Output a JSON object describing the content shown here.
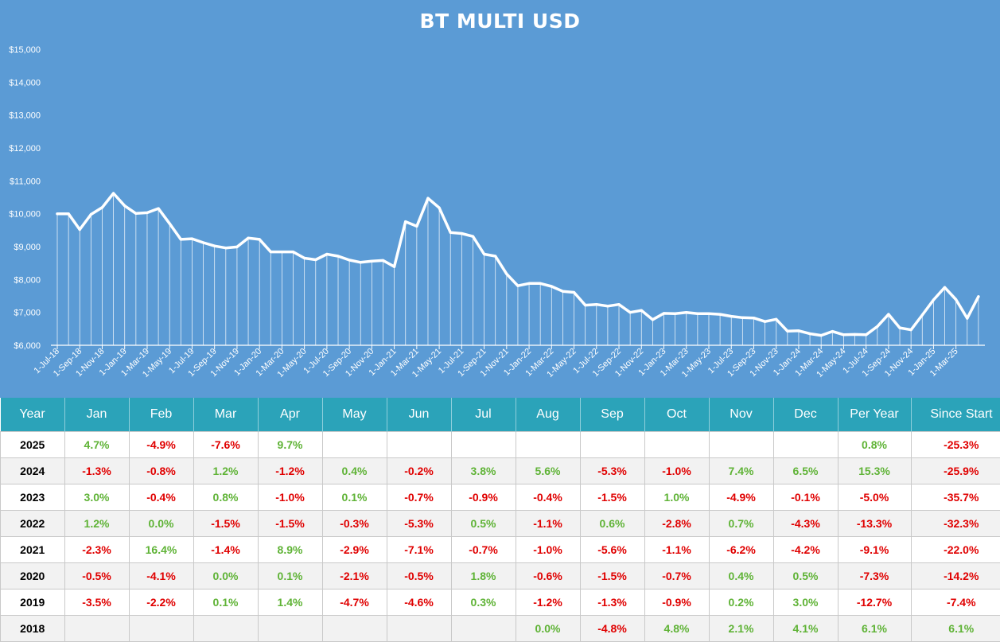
{
  "chart_data": {
    "type": "area",
    "title": "BT MULTI USD",
    "xlabel": "",
    "ylabel": "",
    "ylim": [
      6000,
      15000
    ],
    "y_ticks": [
      "$6,000",
      "$7,000",
      "$8,000",
      "$9,000",
      "$10,000",
      "$11,000",
      "$12,000",
      "$13,000",
      "$14,000",
      "$15,000"
    ],
    "x_tick_labels": [
      "1-Jul-18",
      "1-Sep-18",
      "1-Nov-18",
      "1-Jan-19",
      "1-Mar-19",
      "1-May-19",
      "1-Jul-19",
      "1-Sep-19",
      "1-Nov-19",
      "1-Jan-20",
      "1-Mar-20",
      "1-May-20",
      "1-Jul-20",
      "1-Sep-20",
      "1-Nov-20",
      "1-Jan-21",
      "1-Mar-21",
      "1-May-21",
      "1-Jul-21",
      "1-Sep-21",
      "1-Nov-21",
      "1-Jan-22",
      "1-Mar-22",
      "1-May-22",
      "1-Jul-22",
      "1-Sep-22",
      "1-Nov-22",
      "1-Jan-23",
      "1-Mar-23",
      "1-May-23",
      "1-Jul-23",
      "1-Sep-23",
      "1-Nov-23",
      "1-Jan-24",
      "1-Mar-24",
      "1-May-24",
      "1-Jul-24",
      "1-Sep-24",
      "1-Nov-24",
      "1-Jan-25",
      "1-Mar-25"
    ],
    "x_start": "1-Jul-18",
    "x_interval": "monthly",
    "values": [
      10000,
      10000,
      9520,
      9980,
      10190,
      10620,
      10240,
      10010,
      10030,
      10160,
      9700,
      9220,
      9240,
      9120,
      9020,
      8960,
      8990,
      9260,
      9220,
      8840,
      8840,
      8840,
      8650,
      8600,
      8770,
      8710,
      8590,
      8520,
      8560,
      8580,
      8390,
      9760,
      9620,
      10470,
      10180,
      9430,
      9400,
      9310,
      8770,
      8710,
      8170,
      7810,
      7880,
      7880,
      7790,
      7640,
      7610,
      7220,
      7240,
      7190,
      7240,
      7000,
      7060,
      6780,
      6970,
      6960,
      7000,
      6960,
      6960,
      6940,
      6880,
      6840,
      6830,
      6720,
      6790,
      6430,
      6440,
      6350,
      6300,
      6420,
      6320,
      6330,
      6320,
      6570,
      6940,
      6530,
      6470,
      6920,
      7380,
      7760,
      7390,
      6820,
      7480
    ],
    "grid": false,
    "legend": "none",
    "colors": {
      "background": "#5b9bd5",
      "line": "#ffffff"
    }
  },
  "table": {
    "headers": [
      "Year",
      "Jan",
      "Feb",
      "Mar",
      "Apr",
      "May",
      "Jun",
      "Jul",
      "Aug",
      "Sep",
      "Oct",
      "Nov",
      "Dec",
      "Per Year",
      "Since Start"
    ],
    "rows": [
      [
        "2025",
        "4.7%",
        "-4.9%",
        "-7.6%",
        "9.7%",
        "",
        "",
        "",
        "",
        "",
        "",
        "",
        "",
        "0.8%",
        "-25.3%"
      ],
      [
        "2024",
        "-1.3%",
        "-0.8%",
        "1.2%",
        "-1.2%",
        "0.4%",
        "-0.2%",
        "3.8%",
        "5.6%",
        "-5.3%",
        "-1.0%",
        "7.4%",
        "6.5%",
        "15.3%",
        "-25.9%"
      ],
      [
        "2023",
        "3.0%",
        "-0.4%",
        "0.8%",
        "-1.0%",
        "0.1%",
        "-0.7%",
        "-0.9%",
        "-0.4%",
        "-1.5%",
        "1.0%",
        "-4.9%",
        "-0.1%",
        "-5.0%",
        "-35.7%"
      ],
      [
        "2022",
        "1.2%",
        "0.0%",
        "-1.5%",
        "-1.5%",
        "-0.3%",
        "-5.3%",
        "0.5%",
        "-1.1%",
        "0.6%",
        "-2.8%",
        "0.7%",
        "-4.3%",
        "-13.3%",
        "-32.3%"
      ],
      [
        "2021",
        "-2.3%",
        "16.4%",
        "-1.4%",
        "8.9%",
        "-2.9%",
        "-7.1%",
        "-0.7%",
        "-1.0%",
        "-5.6%",
        "-1.1%",
        "-6.2%",
        "-4.2%",
        "-9.1%",
        "-22.0%"
      ],
      [
        "2020",
        "-0.5%",
        "-4.1%",
        "0.0%",
        "0.1%",
        "-2.1%",
        "-0.5%",
        "1.8%",
        "-0.6%",
        "-1.5%",
        "-0.7%",
        "0.4%",
        "0.5%",
        "-7.3%",
        "-14.2%"
      ],
      [
        "2019",
        "-3.5%",
        "-2.2%",
        "0.1%",
        "1.4%",
        "-4.7%",
        "-4.6%",
        "0.3%",
        "-1.2%",
        "-1.3%",
        "-0.9%",
        "0.2%",
        "3.0%",
        "-12.7%",
        "-7.4%"
      ],
      [
        "2018",
        "",
        "",
        "",
        "",
        "",
        "",
        "",
        "0.0%",
        "-4.8%",
        "4.8%",
        "2.1%",
        "4.1%",
        "6.1%",
        "6.1%"
      ]
    ],
    "colors": {
      "header_bg": "#2ba3b9",
      "positive": "#5fb336",
      "negative": "#e00000"
    }
  }
}
